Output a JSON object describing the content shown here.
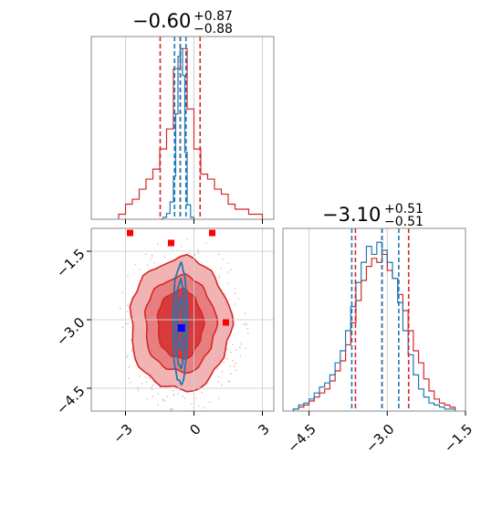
{
  "colors": {
    "red": "#d62728",
    "blue": "#1f77b4",
    "grid": "#cfcfcf",
    "frame": "#888888",
    "red_fill_light": "#f2b3b4",
    "red_fill_mid": "#e77f80",
    "red_fill_dark": "#d93a3b",
    "marker_blue": "#0000ff",
    "marker_red": "#ff0000"
  },
  "chart_data": [
    {
      "type": "histogram",
      "panel": "top-left",
      "parameter_axis": "x",
      "xlim": [
        -4.5,
        3.5
      ],
      "xticks": [
        -3,
        0,
        3
      ],
      "show_tick_labels": false,
      "grid": true,
      "title": {
        "main": "−0.60",
        "sup": "+0.87",
        "sub": "−0.88"
      },
      "quantile_lines": {
        "red": [
          -1.48,
          -0.6,
          0.27
        ],
        "blue": [
          -0.85,
          -0.6,
          -0.35
        ]
      },
      "series": [
        {
          "color": "red",
          "bin_edges": [
            -3.3,
            -3.0,
            -2.7,
            -2.4,
            -2.1,
            -1.8,
            -1.5,
            -1.2,
            -0.9,
            -0.6,
            -0.3,
            0.0,
            0.3,
            0.6,
            0.9,
            1.2,
            1.5,
            1.8,
            2.1,
            2.4,
            2.7,
            3.0
          ],
          "counts": [
            1,
            3,
            4,
            6,
            8,
            10,
            14,
            18,
            30,
            34,
            22,
            14,
            9,
            8,
            6,
            5,
            3,
            2,
            2,
            1,
            1
          ]
        },
        {
          "color": "blue",
          "bin_edges": [
            -1.5,
            -1.35,
            -1.2,
            -1.05,
            -0.9,
            -0.8,
            -0.7,
            -0.6,
            -0.5,
            -0.4,
            -0.3,
            -0.15,
            0.0
          ],
          "counts": [
            0,
            2,
            6,
            18,
            45,
            110,
            170,
            178,
            150,
            70,
            15,
            2
          ]
        }
      ]
    },
    {
      "type": "contour",
      "panel": "bottom-left",
      "xlim": [
        -4.5,
        3.5
      ],
      "ylim": [
        -5.0,
        -1.0
      ],
      "xticks": [
        -3,
        0,
        3
      ],
      "xtick_labels": [
        "−3",
        "0",
        "3"
      ],
      "yticks": [
        -1.5,
        -3.0,
        -4.5
      ],
      "ytick_labels": [
        "−1.5",
        "−3.0",
        "−4.5"
      ],
      "grid": true,
      "red_contours": [
        {
          "level": "outer",
          "cx": -0.6,
          "cy": -3.1,
          "rx": 2.2,
          "ry": 1.45
        },
        {
          "level": "middle",
          "cx": -0.6,
          "cy": -3.1,
          "rx": 1.55,
          "ry": 1.05
        },
        {
          "level": "inner",
          "cx": -0.6,
          "cy": -3.1,
          "rx": 1.0,
          "ry": 0.75
        }
      ],
      "blue_contours": [
        {
          "level": "outer",
          "cx": -0.6,
          "cy": -3.1,
          "rx": 0.32,
          "ry": 1.3
        },
        {
          "level": "middle",
          "cx": -0.6,
          "cy": -3.1,
          "rx": 0.2,
          "ry": 0.95
        },
        {
          "level": "inner",
          "cx": -0.6,
          "cy": -3.1,
          "rx": 0.1,
          "ry": 0.55
        }
      ],
      "markers": [
        {
          "color": "marker_blue",
          "x": -0.55,
          "y": -3.18
        },
        {
          "color": "marker_red",
          "x": -1.0,
          "y": -1.32
        },
        {
          "color": "marker_red",
          "x": 1.4,
          "y": -3.06
        },
        {
          "color": "marker_red",
          "x": -2.8,
          "y": -1.1
        },
        {
          "color": "marker_red",
          "x": 0.8,
          "y": -1.1
        }
      ]
    },
    {
      "type": "histogram",
      "panel": "bottom-right",
      "parameter_axis": "x",
      "xlim": [
        -5.0,
        -1.5
      ],
      "xticks": [
        -4.5,
        -3.0,
        -1.5
      ],
      "xtick_labels": [
        "−4.5",
        "−3.0",
        "−1.5"
      ],
      "grid": true,
      "title": {
        "main": "−3.10",
        "sup": "+0.51",
        "sub": "−0.51"
      },
      "quantile_lines": {
        "red": [
          -3.61,
          -3.1,
          -2.59
        ],
        "blue": [
          -3.68,
          -3.1,
          -2.78
        ]
      },
      "series": [
        {
          "color": "red",
          "bin_edges": [
            -4.8,
            -4.7,
            -4.6,
            -4.5,
            -4.4,
            -4.3,
            -4.2,
            -4.1,
            -4.0,
            -3.9,
            -3.8,
            -3.7,
            -3.6,
            -3.5,
            -3.4,
            -3.3,
            -3.2,
            -3.1,
            -3.0,
            -2.9,
            -2.8,
            -2.7,
            -2.6,
            -2.5,
            -2.4,
            -2.3,
            -2.2,
            -2.1,
            -2.0,
            -1.9,
            -1.8,
            -1.7
          ],
          "counts": [
            1,
            2,
            3,
            5,
            7,
            9,
            11,
            15,
            20,
            25,
            33,
            44,
            55,
            65,
            72,
            76,
            74,
            78,
            70,
            66,
            58,
            50,
            40,
            30,
            24,
            16,
            10,
            6,
            4,
            3,
            2
          ]
        },
        {
          "color": "blue",
          "bin_edges": [
            -4.8,
            -4.7,
            -4.6,
            -4.5,
            -4.4,
            -4.3,
            -4.2,
            -4.1,
            -4.0,
            -3.9,
            -3.8,
            -3.7,
            -3.6,
            -3.5,
            -3.4,
            -3.3,
            -3.2,
            -3.1,
            -3.0,
            -2.9,
            -2.8,
            -2.7,
            -2.6,
            -2.5,
            -2.4,
            -2.3,
            -2.2,
            -2.1,
            -2.0,
            -1.9,
            -1.8,
            -1.7
          ],
          "counts": [
            1,
            3,
            4,
            6,
            9,
            12,
            14,
            18,
            24,
            30,
            40,
            52,
            64,
            74,
            82,
            78,
            84,
            80,
            74,
            66,
            54,
            40,
            28,
            18,
            11,
            7,
            4,
            3,
            2,
            1,
            1
          ]
        }
      ]
    }
  ]
}
